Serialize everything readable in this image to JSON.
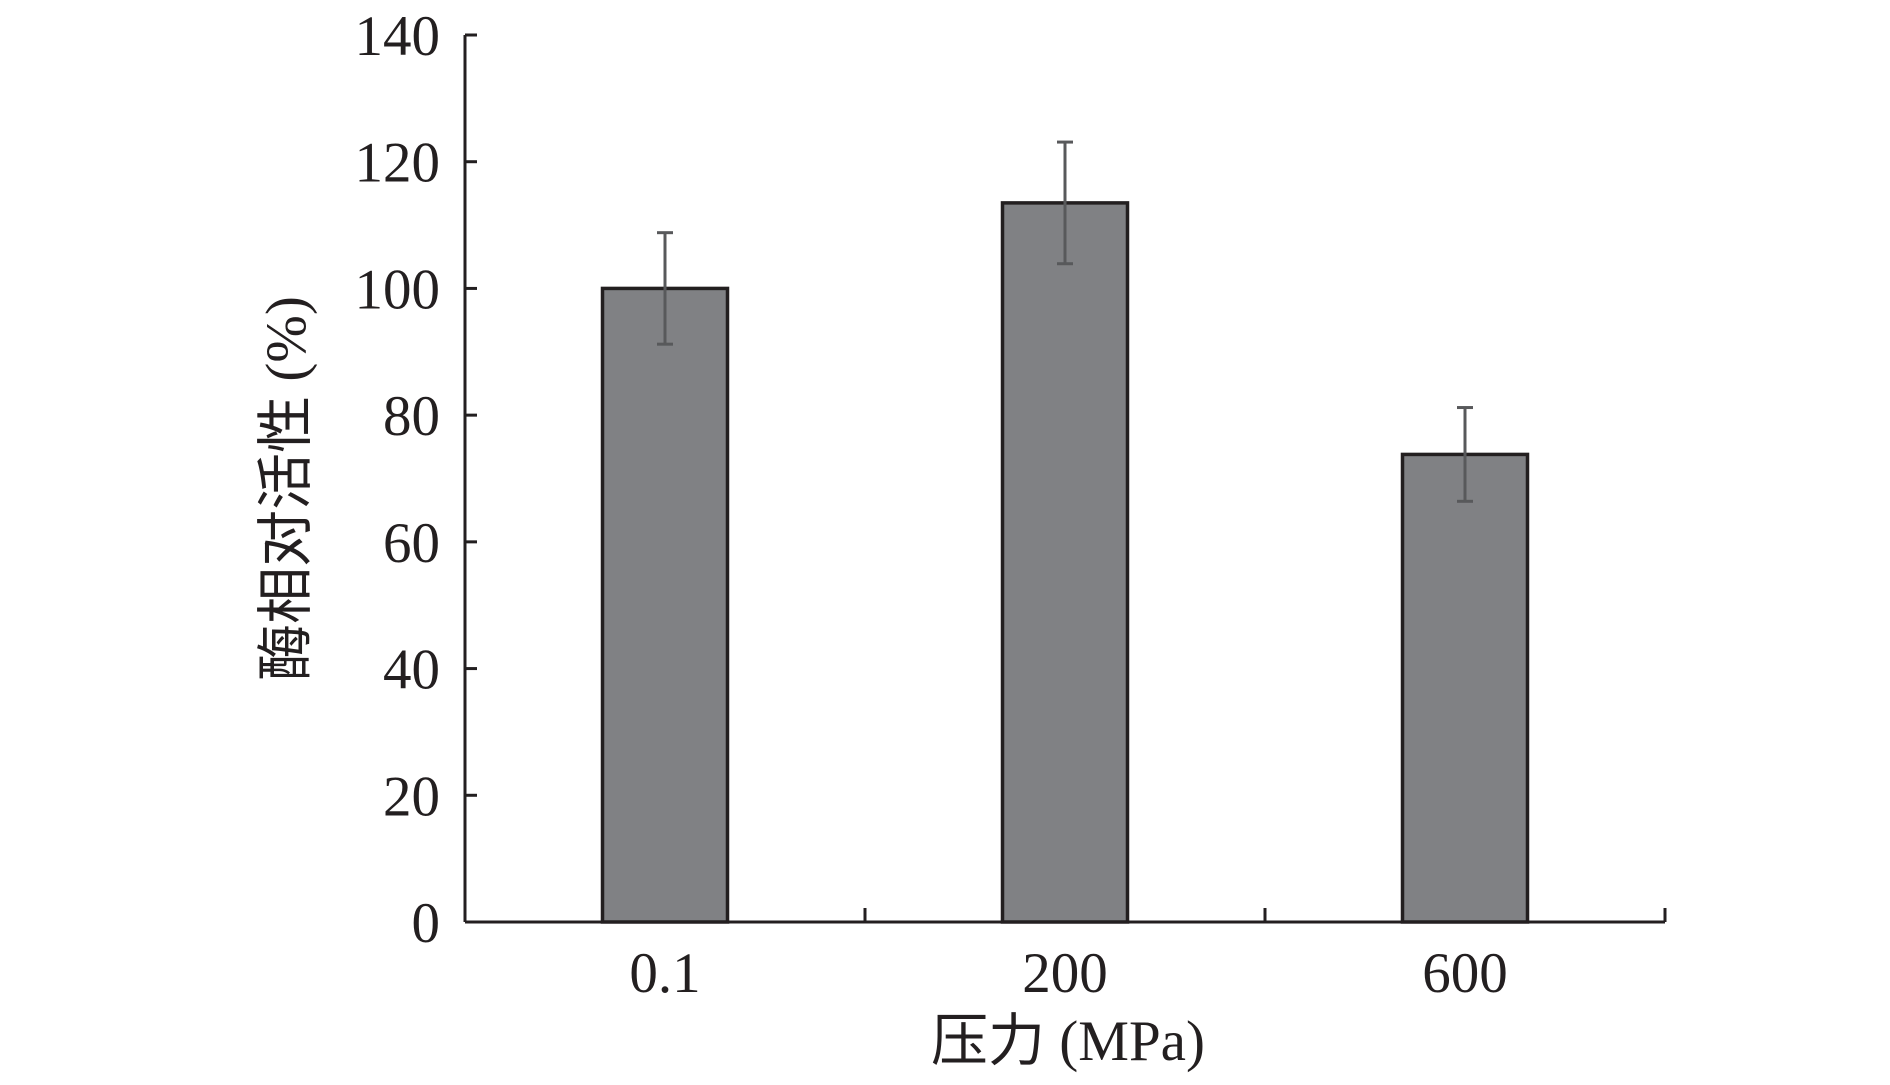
{
  "chart_data": {
    "type": "bar",
    "title": "",
    "xlabel": "压力 (MPa)",
    "ylabel": "酶相对活性 (%)",
    "categories": [
      "0.1",
      "200",
      "600"
    ],
    "series": [
      {
        "values": [
          100,
          113.5,
          73.8
        ],
        "error": [
          8.8,
          9.6,
          7.4
        ]
      }
    ],
    "ylim": [
      0,
      140
    ],
    "yticks": [
      0,
      20,
      40,
      60,
      80,
      100,
      120,
      140
    ],
    "grid": false,
    "legend": "none",
    "colors": {
      "bar_fill": "#808184",
      "bar_stroke": "#231f20",
      "axis": "#231f20",
      "error_bar": "#58595b"
    }
  }
}
